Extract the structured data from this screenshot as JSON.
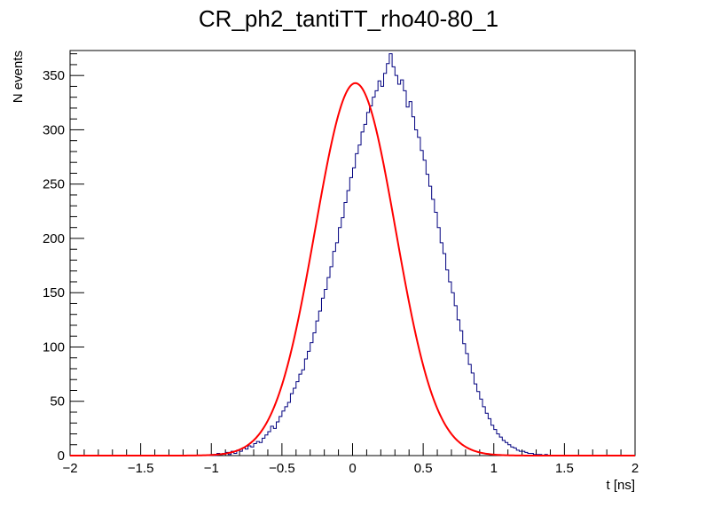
{
  "chart_data": {
    "type": "histogram",
    "title": "CR_ph2_tantiTT_rho40-80_1",
    "xlabel": "t [ns]",
    "ylabel": "N events",
    "xlim": [
      -2,
      2
    ],
    "ylim": [
      0,
      373
    ],
    "xticks": [
      -2,
      -1.5,
      -1,
      -0.5,
      0,
      0.5,
      1,
      1.5,
      2
    ],
    "xtick_labels": [
      "−2",
      "−1.5",
      "−1",
      "−0.5",
      "0",
      "0.5",
      "1",
      "1.5",
      "2"
    ],
    "yticks": [
      0,
      50,
      100,
      150,
      200,
      250,
      300,
      350
    ],
    "ytick_labels": [
      "0",
      "50",
      "100",
      "150",
      "200",
      "250",
      "300",
      "350"
    ],
    "grid": false,
    "bin_width": 0.02,
    "histogram": {
      "name": "data",
      "color": "#00007f",
      "bin_start": -1.0,
      "values": [
        1,
        0,
        2,
        1,
        2,
        3,
        1,
        4,
        2,
        5,
        4,
        7,
        6,
        9,
        8,
        11,
        13,
        12,
        16,
        19,
        22,
        27,
        25,
        31,
        36,
        41,
        45,
        49,
        57,
        62,
        68,
        75,
        79,
        89,
        96,
        104,
        113,
        124,
        133,
        145,
        153,
        164,
        174,
        188,
        196,
        210,
        219,
        233,
        244,
        256,
        265,
        278,
        286,
        298,
        305,
        316,
        322,
        330,
        336,
        345,
        340,
        352,
        361,
        370,
        358,
        350,
        342,
        346,
        336,
        321,
        326,
        312,
        300,
        293,
        281,
        272,
        259,
        248,
        236,
        224,
        210,
        196,
        186,
        171,
        160,
        150,
        138,
        125,
        115,
        103,
        94,
        84,
        76,
        66,
        59,
        52,
        45,
        39,
        34,
        28,
        24,
        20,
        17,
        14,
        12,
        10,
        8,
        7,
        5,
        4,
        4,
        3,
        2,
        2,
        1,
        1,
        1,
        0,
        1,
        0
      ]
    },
    "fit": {
      "name": "gaussian fit",
      "color": "#ff0000",
      "amplitude": 343,
      "mean": 0.02,
      "sigma": 0.285
    }
  }
}
